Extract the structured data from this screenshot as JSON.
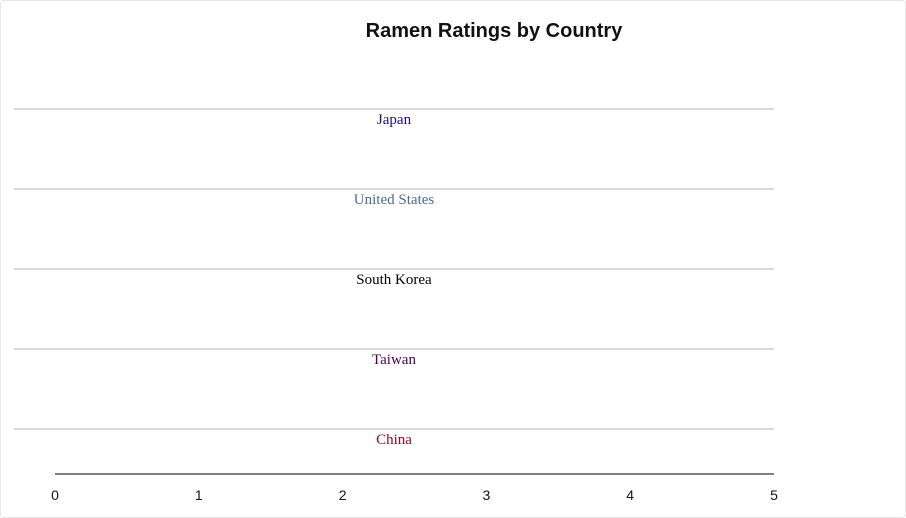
{
  "chart_data": {
    "type": "bar",
    "title": "Ramen Ratings by Country",
    "xlabel": "",
    "ylabel": "",
    "orientation": "horizontal",
    "xlim": [
      0,
      5
    ],
    "x_ticks": [
      "0",
      "1",
      "2",
      "3",
      "4",
      "5"
    ],
    "categories": [
      "Japan",
      "United States",
      "South Korea",
      "Taiwan",
      "China"
    ],
    "category_colors": [
      "#1a0a8c",
      "#4a6b94",
      "#000000",
      "#4a004a",
      "#8b0a2a"
    ],
    "values": [
      null,
      null,
      null,
      null,
      null
    ],
    "grid": false,
    "legend": "none"
  }
}
